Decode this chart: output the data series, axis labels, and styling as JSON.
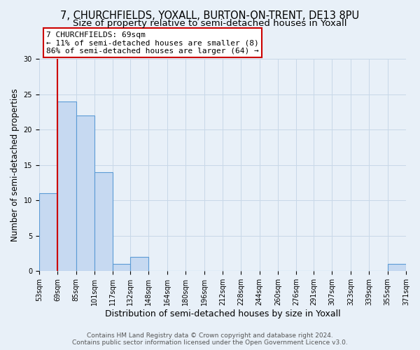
{
  "title": "7, CHURCHFIELDS, YOXALL, BURTON-ON-TRENT, DE13 8PU",
  "subtitle": "Size of property relative to semi-detached houses in Yoxall",
  "xlabel": "Distribution of semi-detached houses by size in Yoxall",
  "ylabel": "Number of semi-detached properties",
  "bin_edges": [
    53,
    69,
    85,
    101,
    117,
    132,
    148,
    164,
    180,
    196,
    212,
    228,
    244,
    260,
    276,
    291,
    307,
    323,
    339,
    355,
    371
  ],
  "bin_labels": [
    "53sqm",
    "69sqm",
    "85sqm",
    "101sqm",
    "117sqm",
    "132sqm",
    "148sqm",
    "164sqm",
    "180sqm",
    "196sqm",
    "212sqm",
    "228sqm",
    "244sqm",
    "260sqm",
    "276sqm",
    "291sqm",
    "307sqm",
    "323sqm",
    "339sqm",
    "355sqm",
    "371sqm"
  ],
  "counts": [
    11,
    24,
    22,
    14,
    1,
    2,
    0,
    0,
    0,
    0,
    0,
    0,
    0,
    0,
    0,
    0,
    0,
    0,
    0,
    1
  ],
  "bar_color": "#c6d9f1",
  "bar_edge_color": "#5b9bd5",
  "annotation_line1": "7 CHURCHFIELDS: 69sqm",
  "annotation_line2": "← 11% of semi-detached houses are smaller (8)",
  "annotation_line3": "86% of semi-detached houses are larger (64) →",
  "annotation_box_color": "#ffffff",
  "annotation_box_edge_color": "#cc0000",
  "red_line_x": 69,
  "ylim": [
    0,
    30
  ],
  "yticks": [
    0,
    5,
    10,
    15,
    20,
    25,
    30
  ],
  "grid_color": "#c8d8e8",
  "background_color": "#e8f0f8",
  "footer_line1": "Contains HM Land Registry data © Crown copyright and database right 2024.",
  "footer_line2": "Contains public sector information licensed under the Open Government Licence v3.0.",
  "title_fontsize": 10.5,
  "subtitle_fontsize": 9.5,
  "xlabel_fontsize": 9,
  "ylabel_fontsize": 8.5,
  "tick_fontsize": 7,
  "annotation_fontsize": 8,
  "footer_fontsize": 6.5
}
